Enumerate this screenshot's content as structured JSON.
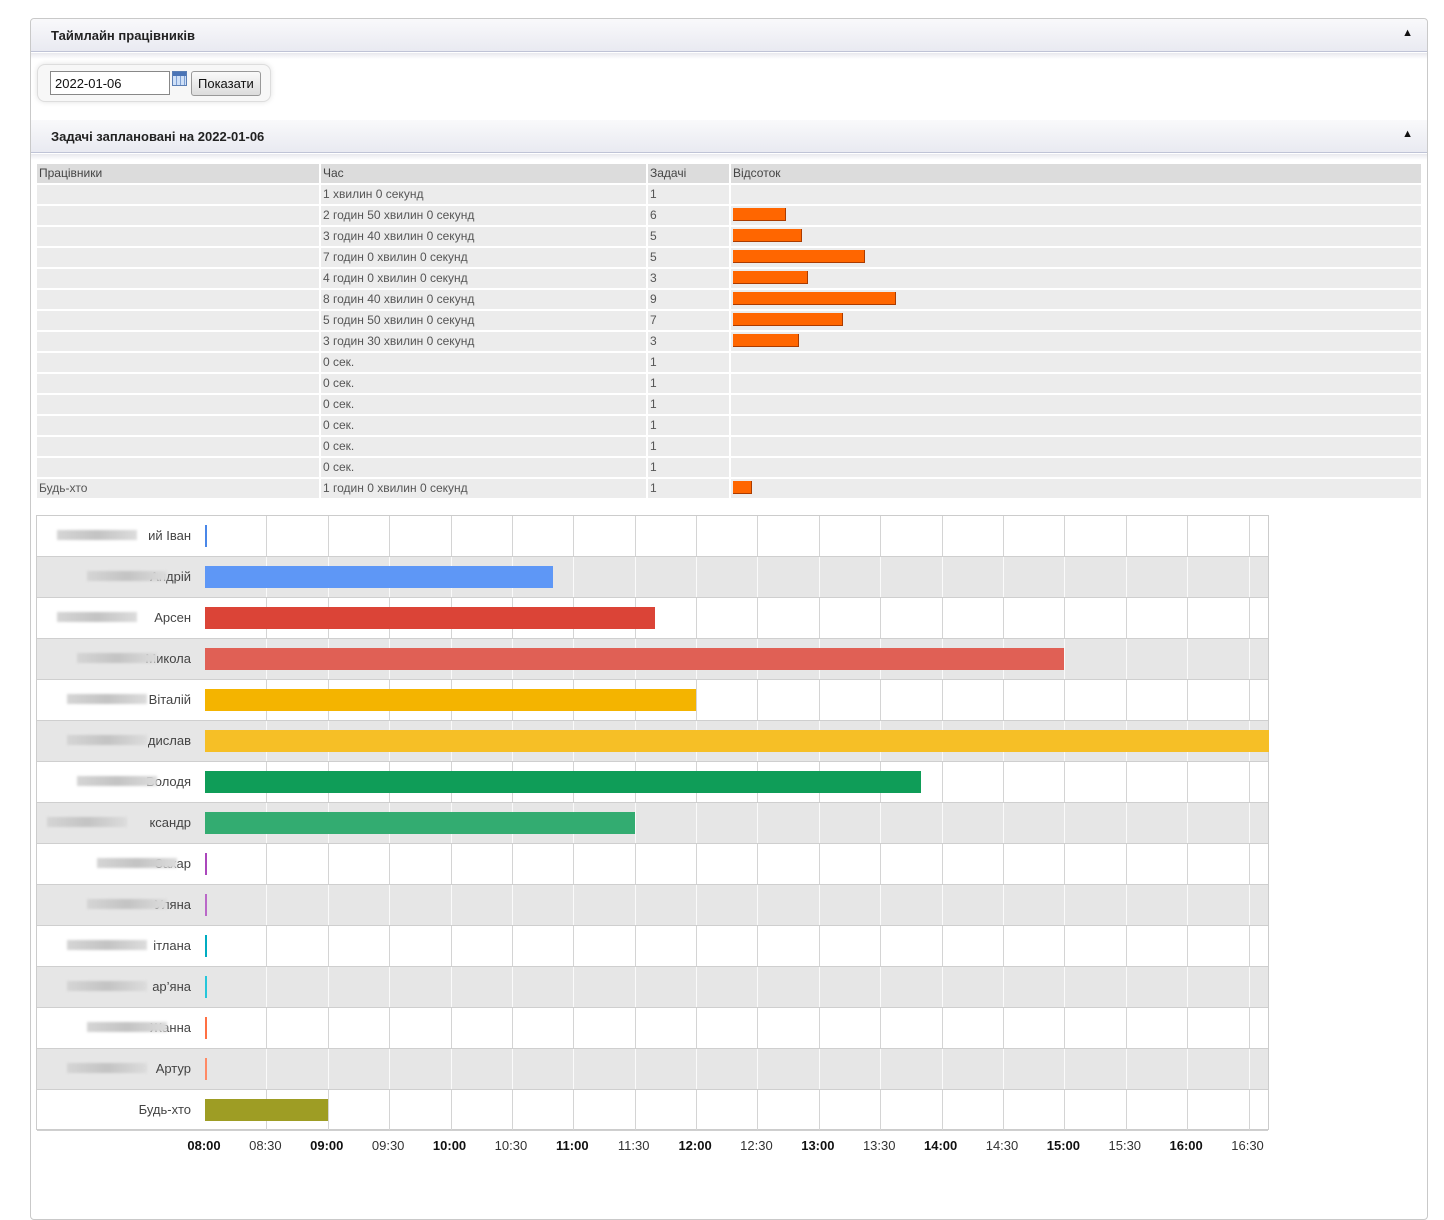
{
  "header": {
    "title": "Таймлайн працівників",
    "collapse_icon": "▲"
  },
  "filter": {
    "date_value": "2022-01-06",
    "show_label": "Показати"
  },
  "tasks_section": {
    "title": "Задачі заплановані на 2022-01-06",
    "collapse_icon": "▲"
  },
  "table": {
    "columns": [
      "Працівники",
      "Час",
      "Задачі",
      "Відсоток"
    ],
    "rows": [
      {
        "name": "",
        "time": "1 хвилин 0 секунд",
        "tasks": "1",
        "percent": 0
      },
      {
        "name": "",
        "time": "2 годин 50 хвилин 0 секунд",
        "tasks": "6",
        "percent": 7.7
      },
      {
        "name": "",
        "time": "3 годин 40 хвилин 0 секунд",
        "tasks": "5",
        "percent": 10.0
      },
      {
        "name": "",
        "time": "7 годин 0 хвилин 0 секунд",
        "tasks": "5",
        "percent": 19.1
      },
      {
        "name": "",
        "time": "4 годин 0 хвилин 0 секунд",
        "tasks": "3",
        "percent": 10.9
      },
      {
        "name": "",
        "time": "8 годин 40 хвилин 0 секунд",
        "tasks": "9",
        "percent": 23.6
      },
      {
        "name": "",
        "time": "5 годин 50 хвилин 0 секунд",
        "tasks": "7",
        "percent": 15.9
      },
      {
        "name": "",
        "time": "3 годин 30 хвилин 0 секунд",
        "tasks": "3",
        "percent": 9.5
      },
      {
        "name": "",
        "time": "0 сек.",
        "tasks": "1",
        "percent": 0
      },
      {
        "name": "",
        "time": "0 сек.",
        "tasks": "1",
        "percent": 0
      },
      {
        "name": "",
        "time": "0 сек.",
        "tasks": "1",
        "percent": 0
      },
      {
        "name": "",
        "time": "0 сек.",
        "tasks": "1",
        "percent": 0
      },
      {
        "name": "",
        "time": "0 сек.",
        "tasks": "1",
        "percent": 0
      },
      {
        "name": "",
        "time": "0 сек.",
        "tasks": "1",
        "percent": 0
      },
      {
        "name": "Будь-хто",
        "time": "1 годин 0 хвилин 0 секунд",
        "tasks": "1",
        "percent": 2.7
      }
    ]
  },
  "chart_data": {
    "type": "timeline",
    "x_ticks": [
      "08:00",
      "08:30",
      "09:00",
      "09:30",
      "10:00",
      "10:30",
      "11:00",
      "11:30",
      "12:00",
      "12:30",
      "13:00",
      "13:30",
      "14:00",
      "14:30",
      "15:00",
      "15:30",
      "16:00",
      "16:30"
    ],
    "x_major_ticks": [
      "08:00",
      "09:00",
      "10:00",
      "11:00",
      "12:00",
      "13:00",
      "14:00",
      "15:00",
      "16:00"
    ],
    "x_range": [
      "08:00",
      "16:40"
    ],
    "rows": [
      {
        "label": "ий Іван",
        "start": "08:00",
        "end": "08:01",
        "color": "#4a87e8"
      },
      {
        "label": "Андрій",
        "start": "08:00",
        "end": "10:50",
        "color": "#5e97f6"
      },
      {
        "label": "Арсен",
        "start": "08:00",
        "end": "11:40",
        "color": "#db4437"
      },
      {
        "label": "Микола",
        "start": "08:00",
        "end": "15:00",
        "color": "#e06055"
      },
      {
        "label": "Віталій",
        "start": "08:00",
        "end": "12:00",
        "color": "#f4b400"
      },
      {
        "label": "дислав",
        "start": "08:00",
        "end": "16:40",
        "color": "#f6bf26"
      },
      {
        "label": "Володя",
        "start": "08:00",
        "end": "13:50",
        "color": "#0f9d58"
      },
      {
        "label": "ксандр",
        "start": "08:00",
        "end": "11:30",
        "color": "#33ac71"
      },
      {
        "label": "Захар",
        "start": "08:00",
        "end": "08:01",
        "color": "#ab47bc"
      },
      {
        "label": "Уляна",
        "start": "08:00",
        "end": "08:01",
        "color": "#ba68c8"
      },
      {
        "label": "ітлана",
        "start": "08:00",
        "end": "08:01",
        "color": "#00acc1"
      },
      {
        "label": "ар’яна",
        "start": "08:00",
        "end": "08:01",
        "color": "#26c6da"
      },
      {
        "label": "Жанна",
        "start": "08:00",
        "end": "08:01",
        "color": "#ff7043"
      },
      {
        "label": "Артур",
        "start": "08:00",
        "end": "08:01",
        "color": "#ff8a65"
      },
      {
        "label": "Будь-хто",
        "start": "08:00",
        "end": "09:00",
        "color": "#9e9d24"
      }
    ]
  }
}
